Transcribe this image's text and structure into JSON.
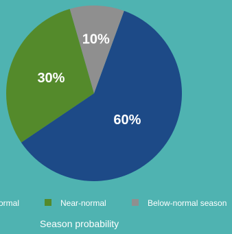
{
  "chart_data": {
    "type": "pie",
    "slices": [
      {
        "name": "Above-normal",
        "value": 60,
        "label": "60%",
        "color": "#1d4a87"
      },
      {
        "name": "Near-normal",
        "value": 30,
        "label": "30%",
        "color": "#548a2b"
      },
      {
        "name": "Below-normal season",
        "value": 10,
        "label": "10%",
        "color": "#8f8f8f"
      }
    ],
    "legend": {
      "placement": "bottom",
      "entries": [
        "ormal",
        "Near-normal",
        "Below-normal season"
      ]
    },
    "xlabel": "Season probability",
    "title": ""
  }
}
